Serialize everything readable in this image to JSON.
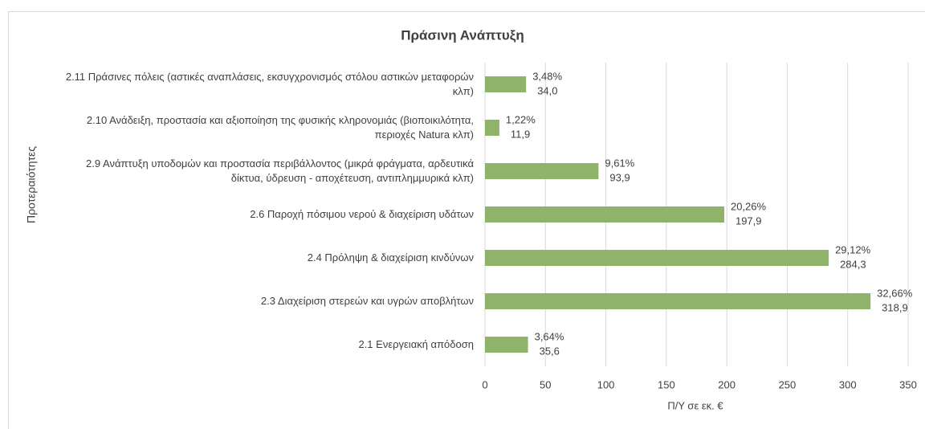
{
  "chart_data": {
    "type": "bar",
    "orientation": "horizontal",
    "title": "Πράσινη Ανάπτυξη",
    "x_label": "Π/Υ σε εκ. €",
    "y_label": "Προτεραιότητες",
    "categories": [
      "2.11 Πράσινες πόλεις (αστικές αναπλάσεις, εκσυγχρονισμός στόλου αστικών μεταφορών κλπ)",
      "2.10 Ανάδειξη, προστασία και αξιοποίηση της φυσικής κληρονομιάς (βιοποικιλότητα, περιοχές Natura κλπ)",
      "2.9 Ανάπτυξη υποδομών και προστασία περιβάλλοντος (μικρά φράγματα, αρδευτικά δίκτυα, ύδρευση - αποχέτευση, αντιπλημμυρικά κλπ)",
      "2.6 Παροχή πόσιμου νερού & διαχείριση υδάτων",
      "2.4 Πρόληψη & διαχείριση κινδύνων",
      "2.3 Διαχείριση στερεών και υγρών αποβλήτων",
      "2.1 Ενεργειακή απόδοση"
    ],
    "values": [
      34.0,
      11.9,
      93.9,
      197.9,
      284.3,
      318.9,
      35.6
    ],
    "value_labels": [
      "34,0",
      "11,9",
      "93,9",
      "197,9",
      "284,3",
      "318,9",
      "35,6"
    ],
    "percent_values": [
      3.48,
      1.22,
      9.61,
      20.26,
      29.12,
      32.66,
      3.64
    ],
    "percent_labels": [
      "3,48%",
      "1,22%",
      "9,61%",
      "20,26%",
      "29,12%",
      "32,66%",
      "3,64%"
    ],
    "color": "#8fb36b",
    "xlim": [
      0,
      350
    ],
    "xticks": [
      0,
      50,
      100,
      150,
      200,
      250,
      300,
      350
    ],
    "grid": true
  }
}
